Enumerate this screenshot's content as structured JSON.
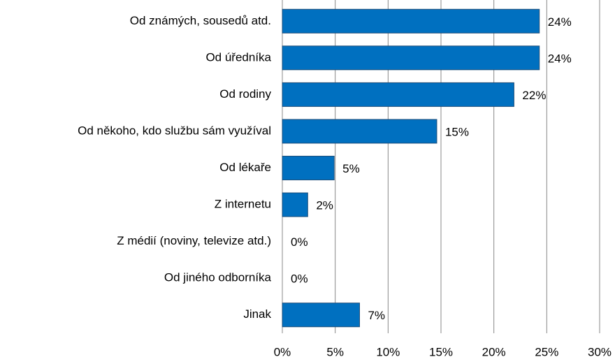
{
  "chart_data": {
    "type": "bar",
    "orientation": "horizontal",
    "categories": [
      "Od známých, sousedů atd.",
      "Od úředníka",
      "Od rodiny",
      "Od někoho, kdo službu sám využíval",
      "Od lékaře",
      "Z internetu",
      "Z médií (noviny, televize atd.)",
      "Od jiného odborníka",
      "Jinak"
    ],
    "values": [
      24.3,
      24.3,
      21.9,
      14.6,
      4.9,
      2.4,
      0,
      0,
      7.3
    ],
    "value_labels": [
      "24%",
      "24%",
      "22%",
      "15%",
      "5%",
      "2%",
      "0%",
      "0%",
      "7%"
    ],
    "color": "#0070c0",
    "xlim": [
      0,
      30
    ],
    "xticks": [
      {
        "value": 0,
        "label": "0%"
      },
      {
        "value": 5,
        "label": "5%"
      },
      {
        "value": 10,
        "label": "10%"
      },
      {
        "value": 15,
        "label": "15%"
      },
      {
        "value": 20,
        "label": "20%"
      },
      {
        "value": 25,
        "label": "25%"
      },
      {
        "value": 30,
        "label": "30%"
      }
    ],
    "grid": true
  }
}
